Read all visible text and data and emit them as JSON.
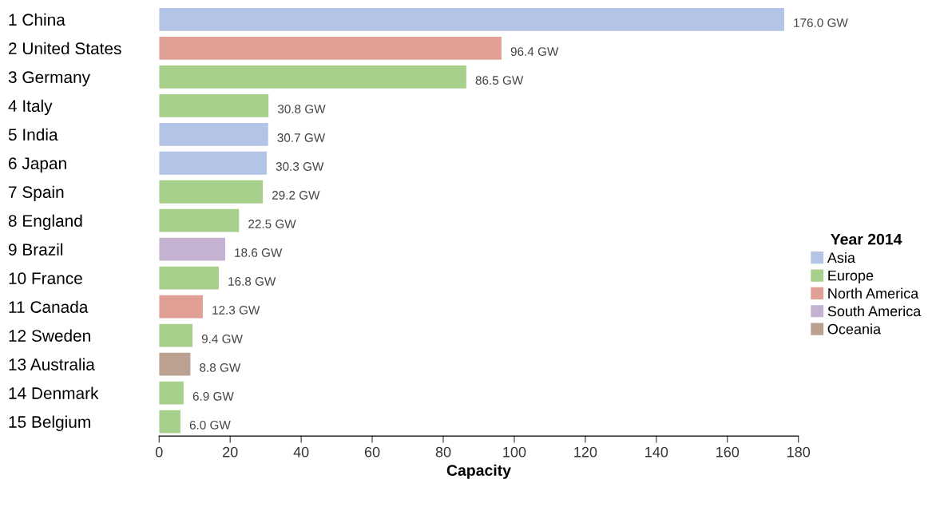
{
  "chart_data": {
    "type": "bar",
    "orientation": "horizontal",
    "xlabel": "Capacity",
    "legend_title": "Year 2014",
    "legend": "right",
    "categories": [
      "1 China",
      "2 United States",
      "3 Germany",
      "4 Italy",
      "5 India",
      "6 Japan",
      "7 Spain",
      "8 England",
      "9 Brazil",
      "10 France",
      "11 Canada",
      "12 Sweden",
      "13 Australia",
      "14 Denmark",
      "15 Belgium"
    ],
    "series": [
      {
        "name": "Asia",
        "color": "#b4c4e6",
        "values": [
          176.0,
          null,
          null,
          null,
          30.7,
          30.3,
          null,
          null,
          null,
          null,
          null,
          null,
          null,
          null,
          null
        ]
      },
      {
        "name": "Europe",
        "color": "#a8d08d",
        "values": [
          null,
          null,
          86.5,
          30.8,
          null,
          null,
          29.2,
          22.5,
          null,
          16.8,
          null,
          9.4,
          null,
          6.9,
          6.0
        ]
      },
      {
        "name": "North America",
        "color": "#e0a096",
        "values": [
          null,
          96.4,
          null,
          null,
          null,
          null,
          null,
          null,
          null,
          null,
          12.3,
          null,
          null,
          null,
          null
        ]
      },
      {
        "name": "South America",
        "color": "#c4b2d0",
        "values": [
          null,
          null,
          null,
          null,
          null,
          null,
          null,
          null,
          18.6,
          null,
          null,
          null,
          null,
          null,
          null
        ]
      },
      {
        "name": "Oceania",
        "color": "#bba190",
        "values": [
          null,
          null,
          null,
          null,
          null,
          null,
          null,
          null,
          null,
          null,
          null,
          null,
          8.8,
          null,
          null
        ]
      }
    ],
    "value_labels": [
      "176.0 GW",
      "96.4 GW",
      "86.5 GW",
      "30.8 GW",
      "30.7 GW",
      "30.3 GW",
      "29.2 GW",
      "22.5 GW",
      "18.6 GW",
      "16.8 GW",
      "12.3 GW",
      "9.4 GW",
      "8.8 GW",
      "6.9 GW",
      "6.0 GW"
    ],
    "xlim": [
      0,
      180
    ],
    "xticks": [
      0,
      20,
      40,
      60,
      80,
      100,
      120,
      140,
      160,
      180
    ]
  }
}
